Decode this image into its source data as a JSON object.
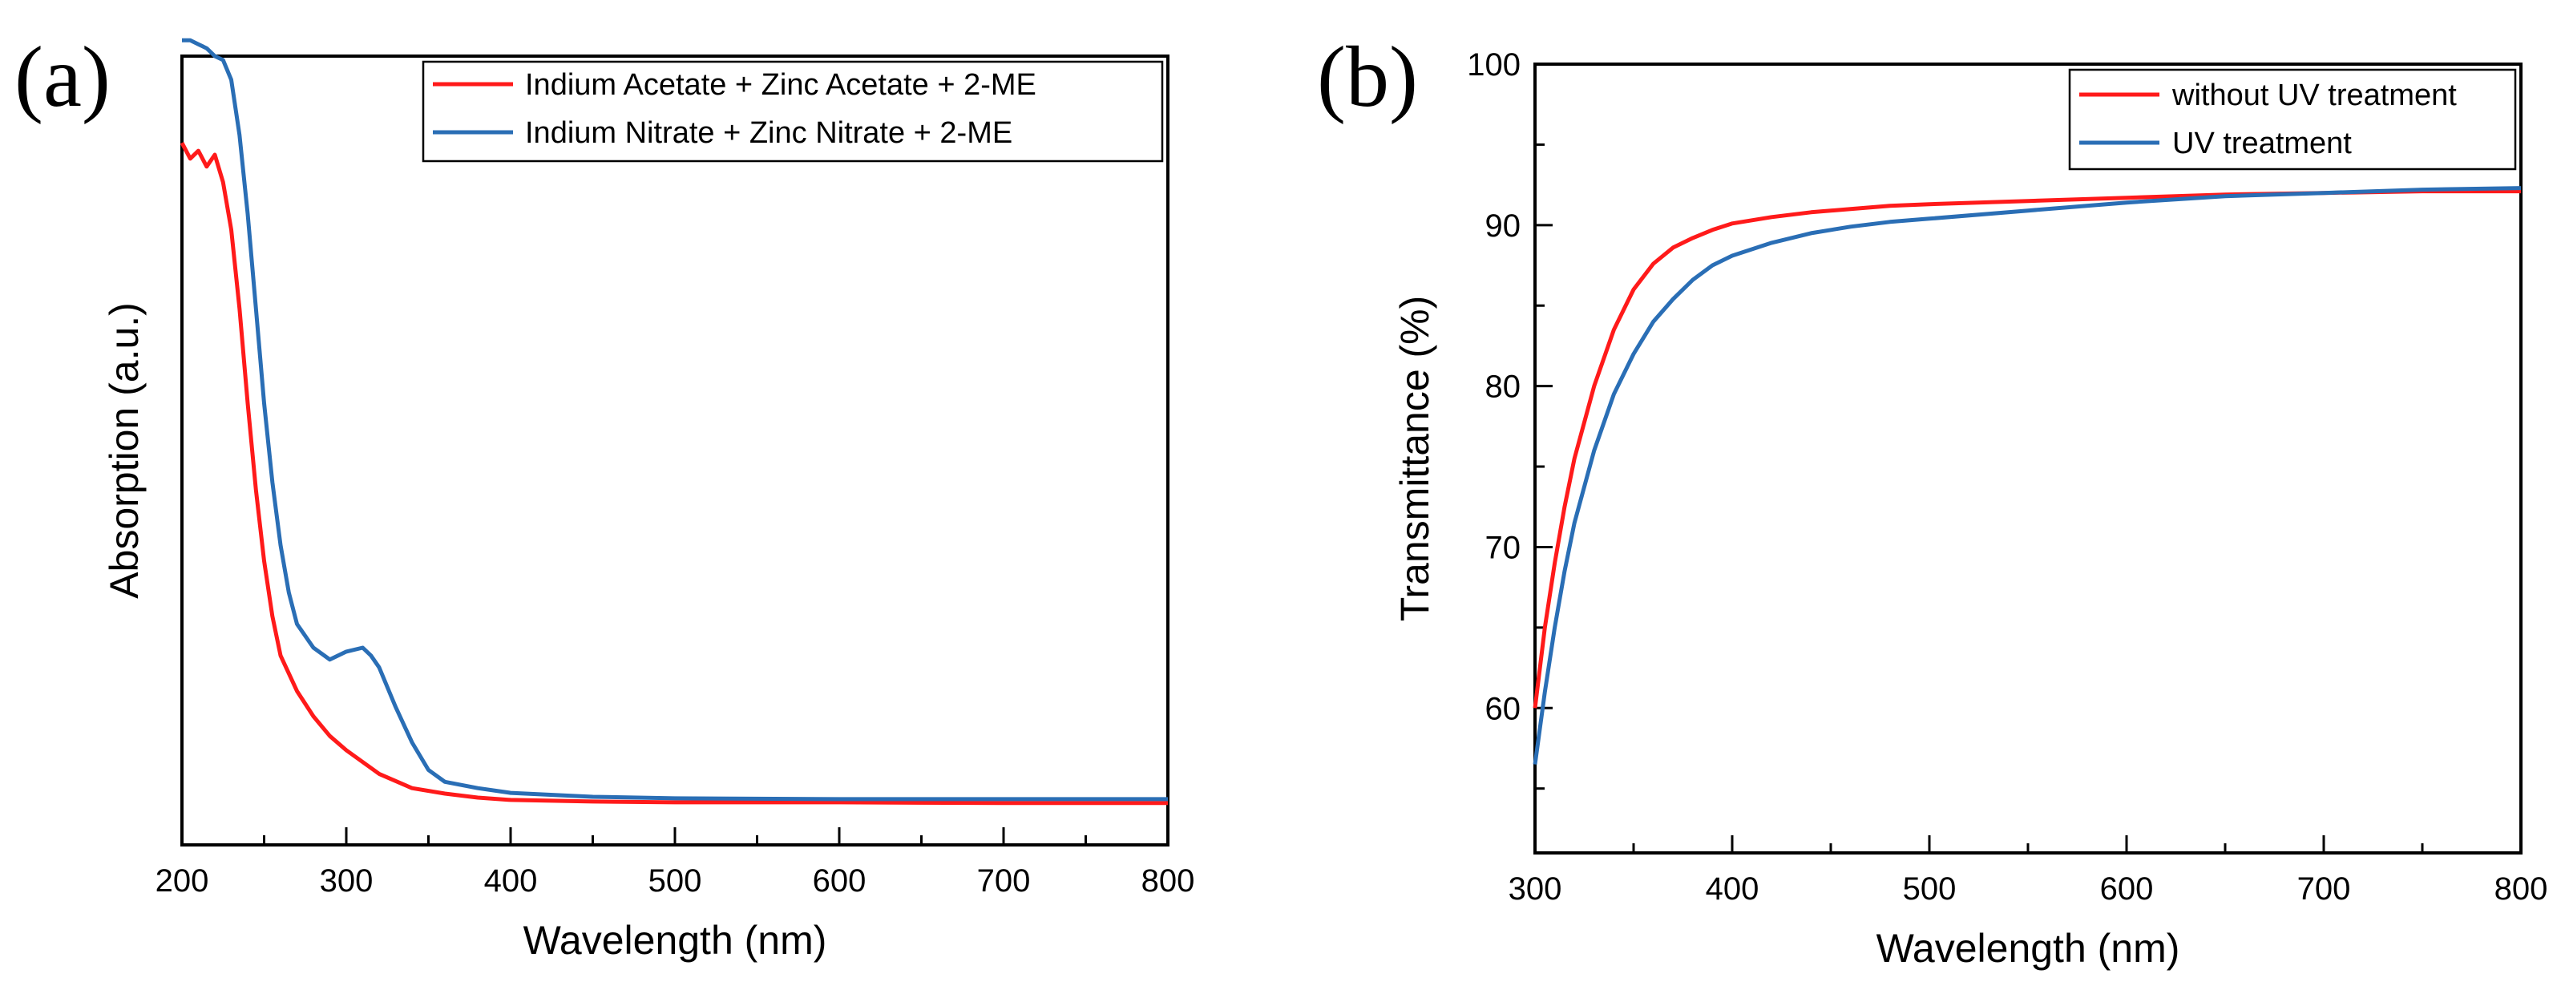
{
  "chart_data": [
    {
      "panel_label": "(a)",
      "type": "line",
      "title": "",
      "xlabel": "Wavelength (nm)",
      "ylabel": "Absorption (a.u.)",
      "xlim": [
        200,
        800
      ],
      "ylim": [
        0,
        1
      ],
      "xticks": [
        200,
        300,
        400,
        500,
        600,
        700,
        800
      ],
      "x_tick_labels": [
        "200",
        "300",
        "400",
        "500",
        "600",
        "700",
        "800"
      ],
      "y_tick_labels": [],
      "grid": false,
      "legend_position": "top-right",
      "series": [
        {
          "name": "Indium Acetate + Zinc Acetate + 2-ME",
          "color": "#ff1a1a",
          "x": [
            200,
            205,
            210,
            215,
            220,
            225,
            230,
            235,
            240,
            245,
            250,
            255,
            260,
            270,
            280,
            290,
            300,
            320,
            340,
            360,
            380,
            400,
            450,
            500,
            600,
            700,
            800
          ],
          "y": [
            0.89,
            0.87,
            0.88,
            0.86,
            0.875,
            0.84,
            0.78,
            0.68,
            0.56,
            0.45,
            0.36,
            0.29,
            0.24,
            0.195,
            0.163,
            0.138,
            0.12,
            0.09,
            0.072,
            0.065,
            0.06,
            0.057,
            0.055,
            0.054,
            0.054,
            0.053,
            0.053
          ]
        },
        {
          "name": "Indium Nitrate + Zinc Nitrate + 2-ME",
          "color": "#2a6eb5",
          "x": [
            200,
            205,
            210,
            215,
            220,
            225,
            230,
            235,
            240,
            245,
            250,
            255,
            260,
            265,
            270,
            280,
            290,
            300,
            310,
            315,
            320,
            330,
            340,
            350,
            360,
            380,
            400,
            450,
            500,
            600,
            700,
            800
          ],
          "y": [
            1.02,
            1.02,
            1.015,
            1.01,
            1.0,
            0.995,
            0.97,
            0.9,
            0.8,
            0.68,
            0.56,
            0.46,
            0.38,
            0.32,
            0.28,
            0.25,
            0.235,
            0.245,
            0.25,
            0.24,
            0.225,
            0.175,
            0.13,
            0.095,
            0.08,
            0.072,
            0.066,
            0.061,
            0.059,
            0.058,
            0.058,
            0.058
          ]
        }
      ]
    },
    {
      "panel_label": "(b)",
      "type": "line",
      "title": "",
      "xlabel": "Wavelength (nm)",
      "ylabel": "Transmittance (%)",
      "xlim": [
        300,
        800
      ],
      "ylim": [
        51,
        100
      ],
      "xticks": [
        300,
        400,
        500,
        600,
        700,
        800
      ],
      "x_tick_labels": [
        "300",
        "400",
        "500",
        "600",
        "700",
        "800"
      ],
      "yticks": [
        60,
        70,
        80,
        90,
        100
      ],
      "y_tick_labels": [
        "60",
        "70",
        "80",
        "90",
        "100"
      ],
      "grid": false,
      "legend_position": "top-right",
      "series": [
        {
          "name": "without UV treatment",
          "color": "#ff1a1a",
          "x": [
            300,
            305,
            310,
            315,
            320,
            330,
            340,
            350,
            360,
            370,
            380,
            390,
            400,
            420,
            440,
            460,
            480,
            500,
            550,
            600,
            650,
            700,
            750,
            800
          ],
          "y": [
            60,
            65,
            69,
            72.5,
            75.5,
            80,
            83.5,
            86,
            87.6,
            88.6,
            89.2,
            89.7,
            90.1,
            90.5,
            90.8,
            91.0,
            91.2,
            91.3,
            91.5,
            91.7,
            91.9,
            92.0,
            92.1,
            92.1
          ]
        },
        {
          "name": "UV treatment",
          "color": "#2a6eb5",
          "x": [
            300,
            305,
            310,
            315,
            320,
            330,
            340,
            350,
            360,
            370,
            380,
            390,
            400,
            420,
            440,
            460,
            480,
            500,
            550,
            600,
            650,
            700,
            750,
            800
          ],
          "y": [
            56.5,
            61,
            65,
            68.5,
            71.5,
            76,
            79.5,
            82,
            84,
            85.4,
            86.6,
            87.5,
            88.1,
            88.9,
            89.5,
            89.9,
            90.2,
            90.4,
            90.9,
            91.4,
            91.8,
            92.0,
            92.2,
            92.3
          ]
        }
      ]
    }
  ]
}
